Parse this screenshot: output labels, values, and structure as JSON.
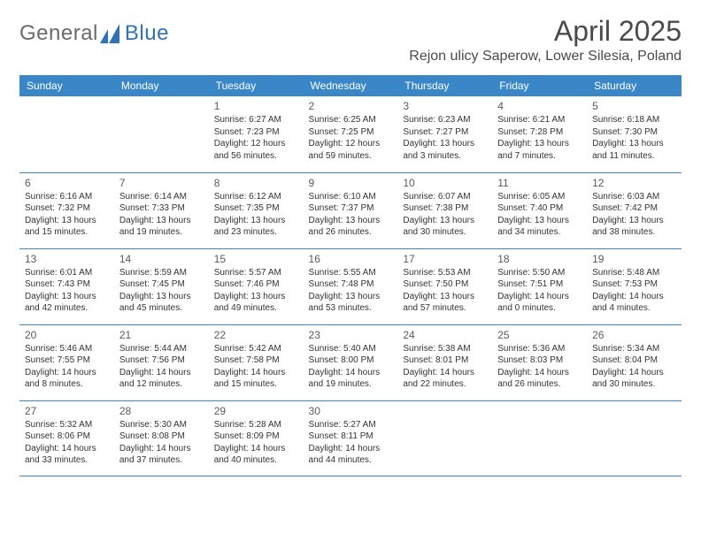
{
  "brand": {
    "general": "General",
    "blue": "Blue"
  },
  "title": "April 2025",
  "location": "Rejon ulicy Saperow, Lower Silesia, Poland",
  "colors": {
    "header_bg": "#3a87c8",
    "header_text": "#ffffff",
    "row_border": "#3a87c8",
    "logo_gray": "#6a6a6a",
    "logo_blue": "#2f73b5",
    "body_text": "#333333"
  },
  "day_headers": [
    "Sunday",
    "Monday",
    "Tuesday",
    "Wednesday",
    "Thursday",
    "Friday",
    "Saturday"
  ],
  "weeks": [
    [
      null,
      null,
      {
        "n": "1",
        "sunrise": "6:27 AM",
        "sunset": "7:23 PM",
        "daylight": "12 hours and 56 minutes."
      },
      {
        "n": "2",
        "sunrise": "6:25 AM",
        "sunset": "7:25 PM",
        "daylight": "12 hours and 59 minutes."
      },
      {
        "n": "3",
        "sunrise": "6:23 AM",
        "sunset": "7:27 PM",
        "daylight": "13 hours and 3 minutes."
      },
      {
        "n": "4",
        "sunrise": "6:21 AM",
        "sunset": "7:28 PM",
        "daylight": "13 hours and 7 minutes."
      },
      {
        "n": "5",
        "sunrise": "6:18 AM",
        "sunset": "7:30 PM",
        "daylight": "13 hours and 11 minutes."
      }
    ],
    [
      {
        "n": "6",
        "sunrise": "6:16 AM",
        "sunset": "7:32 PM",
        "daylight": "13 hours and 15 minutes."
      },
      {
        "n": "7",
        "sunrise": "6:14 AM",
        "sunset": "7:33 PM",
        "daylight": "13 hours and 19 minutes."
      },
      {
        "n": "8",
        "sunrise": "6:12 AM",
        "sunset": "7:35 PM",
        "daylight": "13 hours and 23 minutes."
      },
      {
        "n": "9",
        "sunrise": "6:10 AM",
        "sunset": "7:37 PM",
        "daylight": "13 hours and 26 minutes."
      },
      {
        "n": "10",
        "sunrise": "6:07 AM",
        "sunset": "7:38 PM",
        "daylight": "13 hours and 30 minutes."
      },
      {
        "n": "11",
        "sunrise": "6:05 AM",
        "sunset": "7:40 PM",
        "daylight": "13 hours and 34 minutes."
      },
      {
        "n": "12",
        "sunrise": "6:03 AM",
        "sunset": "7:42 PM",
        "daylight": "13 hours and 38 minutes."
      }
    ],
    [
      {
        "n": "13",
        "sunrise": "6:01 AM",
        "sunset": "7:43 PM",
        "daylight": "13 hours and 42 minutes."
      },
      {
        "n": "14",
        "sunrise": "5:59 AM",
        "sunset": "7:45 PM",
        "daylight": "13 hours and 45 minutes."
      },
      {
        "n": "15",
        "sunrise": "5:57 AM",
        "sunset": "7:46 PM",
        "daylight": "13 hours and 49 minutes."
      },
      {
        "n": "16",
        "sunrise": "5:55 AM",
        "sunset": "7:48 PM",
        "daylight": "13 hours and 53 minutes."
      },
      {
        "n": "17",
        "sunrise": "5:53 AM",
        "sunset": "7:50 PM",
        "daylight": "13 hours and 57 minutes."
      },
      {
        "n": "18",
        "sunrise": "5:50 AM",
        "sunset": "7:51 PM",
        "daylight": "14 hours and 0 minutes."
      },
      {
        "n": "19",
        "sunrise": "5:48 AM",
        "sunset": "7:53 PM",
        "daylight": "14 hours and 4 minutes."
      }
    ],
    [
      {
        "n": "20",
        "sunrise": "5:46 AM",
        "sunset": "7:55 PM",
        "daylight": "14 hours and 8 minutes."
      },
      {
        "n": "21",
        "sunrise": "5:44 AM",
        "sunset": "7:56 PM",
        "daylight": "14 hours and 12 minutes."
      },
      {
        "n": "22",
        "sunrise": "5:42 AM",
        "sunset": "7:58 PM",
        "daylight": "14 hours and 15 minutes."
      },
      {
        "n": "23",
        "sunrise": "5:40 AM",
        "sunset": "8:00 PM",
        "daylight": "14 hours and 19 minutes."
      },
      {
        "n": "24",
        "sunrise": "5:38 AM",
        "sunset": "8:01 PM",
        "daylight": "14 hours and 22 minutes."
      },
      {
        "n": "25",
        "sunrise": "5:36 AM",
        "sunset": "8:03 PM",
        "daylight": "14 hours and 26 minutes."
      },
      {
        "n": "26",
        "sunrise": "5:34 AM",
        "sunset": "8:04 PM",
        "daylight": "14 hours and 30 minutes."
      }
    ],
    [
      {
        "n": "27",
        "sunrise": "5:32 AM",
        "sunset": "8:06 PM",
        "daylight": "14 hours and 33 minutes."
      },
      {
        "n": "28",
        "sunrise": "5:30 AM",
        "sunset": "8:08 PM",
        "daylight": "14 hours and 37 minutes."
      },
      {
        "n": "29",
        "sunrise": "5:28 AM",
        "sunset": "8:09 PM",
        "daylight": "14 hours and 40 minutes."
      },
      {
        "n": "30",
        "sunrise": "5:27 AM",
        "sunset": "8:11 PM",
        "daylight": "14 hours and 44 minutes."
      },
      null,
      null,
      null
    ]
  ],
  "labels": {
    "sunrise": "Sunrise:",
    "sunset": "Sunset:",
    "daylight": "Daylight:"
  }
}
